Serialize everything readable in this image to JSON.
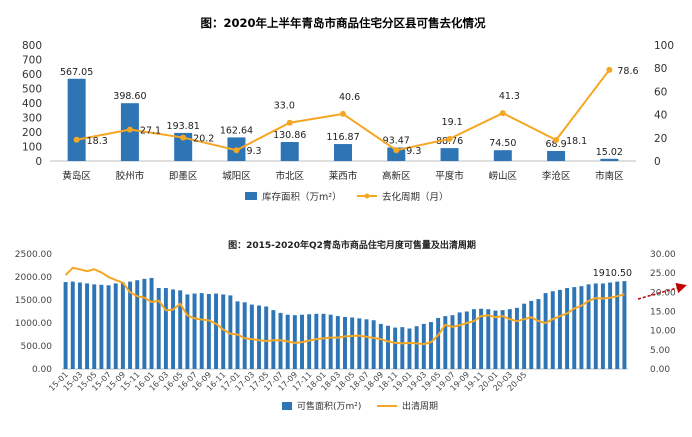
{
  "chart_data": [
    {
      "type": "bar",
      "title": "图：2020年上半年青岛市商品住宅分区县可售去化情况",
      "categories": [
        "黄岛区",
        "胶州市",
        "即墨区",
        "城阳区",
        "市北区",
        "莱西市",
        "高新区",
        "平度市",
        "崂山区",
        "李沧区",
        "市南区"
      ],
      "series": [
        {
          "name": "库存面积（万m²）",
          "type": "bar",
          "axis": "left",
          "values": [
            567.05,
            398.6,
            193.81,
            162.64,
            130.86,
            116.87,
            93.47,
            88.76,
            74.5,
            68.9,
            15.02
          ]
        },
        {
          "name": "去化周期（月）",
          "type": "line",
          "axis": "right",
          "values": [
            18.3,
            27.1,
            20.2,
            9.3,
            33.0,
            40.6,
            9.3,
            19.1,
            41.3,
            18.1,
            78.6
          ]
        }
      ],
      "bar_labels": [
        "567.05",
        "398.60",
        "193.81",
        "162.64",
        "130.86",
        "116.87",
        "93.47",
        "88.76",
        "74.50",
        "68.9",
        "15.02"
      ],
      "line_labels": [
        "18.3",
        "27.1",
        "20.2",
        "9.3",
        "33.0",
        "40.6",
        "9.3",
        "19.1",
        "41.3",
        "18.1",
        "78.6"
      ],
      "y_left": {
        "ticks": [
          "0",
          "100",
          "200",
          "300",
          "400",
          "500",
          "600",
          "700",
          "800"
        ],
        "ylim": [
          0,
          800
        ]
      },
      "y_right": {
        "ticks": [
          "0",
          "20",
          "40",
          "60",
          "80",
          "100"
        ],
        "ylim": [
          0,
          100
        ]
      },
      "colors": {
        "bar": "#2e75b6",
        "line": "#f5a623"
      }
    },
    {
      "type": "bar",
      "title": "图：2015-2020年Q2青岛市商品住宅月度可售量及出清周期",
      "x_tick_labels": [
        "15-01",
        "15-03",
        "15-05",
        "15-07",
        "15-09",
        "15-11",
        "16-01",
        "16-03",
        "16-05",
        "16-07",
        "16-09",
        "16-11",
        "17-01",
        "17-03",
        "17-05",
        "17-07",
        "17-09",
        "17-11",
        "18-01",
        "18-03",
        "18-05",
        "18-07",
        "18-09",
        "18-11",
        "19-01",
        "19-03",
        "19-05",
        "19-07",
        "19-09",
        "19-11",
        "20-01",
        "20-03",
        "20-05"
      ],
      "series": [
        {
          "name": "可售面积(万m²)",
          "type": "bar",
          "axis": "left",
          "values": [
            1890,
            1900,
            1880,
            1860,
            1840,
            1830,
            1820,
            1860,
            1880,
            1900,
            1930,
            1960,
            1980,
            1760,
            1760,
            1730,
            1710,
            1620,
            1640,
            1650,
            1630,
            1640,
            1620,
            1600,
            1470,
            1450,
            1400,
            1380,
            1360,
            1280,
            1220,
            1180,
            1170,
            1180,
            1190,
            1200,
            1200,
            1180,
            1150,
            1130,
            1120,
            1100,
            1080,
            1060,
            980,
            940,
            900,
            910,
            880,
            930,
            980,
            1020,
            1110,
            1150,
            1170,
            1230,
            1250,
            1300,
            1310,
            1300,
            1270,
            1280,
            1300,
            1330,
            1420,
            1480,
            1520,
            1650,
            1690,
            1720,
            1760,
            1780,
            1800,
            1840,
            1860,
            1860,
            1880,
            1900,
            1910.5
          ]
        },
        {
          "name": "出清周期",
          "type": "line",
          "axis": "right",
          "values": [
            24.5,
            26.4,
            26.0,
            25.5,
            26.0,
            25.2,
            24.0,
            23.2,
            22.5,
            20.0,
            19.0,
            18.6,
            17.5,
            17.8,
            15.3,
            15.5,
            17.0,
            14.0,
            13.2,
            12.9,
            12.7,
            11.8,
            10.3,
            9.2,
            9.0,
            8.0,
            7.8,
            7.5,
            7.3,
            7.5,
            7.5,
            7.2,
            6.8,
            7.0,
            7.4,
            7.8,
            8.0,
            8.2,
            8.2,
            8.5,
            8.6,
            8.7,
            8.4,
            8.1,
            7.8,
            7.2,
            6.8,
            6.7,
            6.8,
            6.7,
            6.5,
            7.0,
            8.8,
            11.5,
            11.0,
            11.4,
            12.0,
            12.5,
            13.8,
            14.0,
            13.5,
            13.8,
            13.0,
            12.5,
            13.0,
            13.5,
            12.5,
            12.0,
            13.0,
            13.8,
            14.5,
            15.8,
            16.5,
            17.8,
            18.5,
            18.4,
            18.6,
            19.0,
            19.5
          ]
        }
      ],
      "annotation": "1910.50",
      "y_left": {
        "ticks": [
          "0.00",
          "500.00",
          "1000.00",
          "1500.00",
          "2000.00",
          "2500.00"
        ],
        "ylim": [
          0,
          2500
        ]
      },
      "y_right": {
        "ticks": [
          "0.00",
          "5.00",
          "10.00",
          "15.00",
          "20.00",
          "25.00",
          "30.00"
        ],
        "ylim": [
          0,
          30
        ]
      },
      "colors": {
        "bar": "#2e75b6",
        "line": "#f5a623",
        "arrow": "#c00000"
      }
    }
  ]
}
